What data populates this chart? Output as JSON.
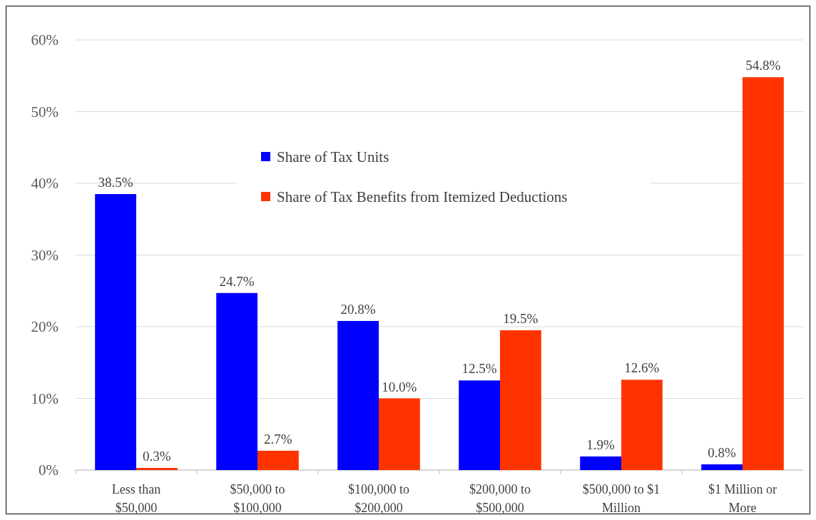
{
  "chart_data": {
    "type": "bar",
    "categories": [
      "Less than\n$50,000",
      "$50,000 to\n$100,000",
      "$100,000 to\n$200,000",
      "$200,000 to\n$500,000",
      "$500,000 to $1\nMillion",
      "$1 Million or\nMore"
    ],
    "series": [
      {
        "name": "Share of Tax Units",
        "color": "#0000ff",
        "values": [
          38.5,
          24.7,
          20.8,
          12.5,
          1.9,
          0.8
        ],
        "value_labels": [
          "38.5%",
          "24.7%",
          "20.8%",
          "12.5%",
          "1.9%",
          "0.8%"
        ]
      },
      {
        "name": "Share of Tax Benefits from Itemized Deductions",
        "color": "#ff3300",
        "values": [
          0.3,
          2.7,
          10.0,
          19.5,
          12.6,
          54.8
        ],
        "value_labels": [
          "0.3%",
          "2.7%",
          "10.0%",
          "19.5%",
          "12.6%",
          "54.8%"
        ]
      }
    ],
    "ylim": [
      0,
      60
    ],
    "yticks": [
      {
        "value": 0,
        "label": "0%"
      },
      {
        "value": 10,
        "label": "10%"
      },
      {
        "value": 20,
        "label": "20%"
      },
      {
        "value": 30,
        "label": "30%"
      },
      {
        "value": 40,
        "label": "40%"
      },
      {
        "value": 50,
        "label": "50%"
      },
      {
        "value": 60,
        "label": "60%"
      }
    ],
    "grid": "y",
    "legend": "top"
  }
}
